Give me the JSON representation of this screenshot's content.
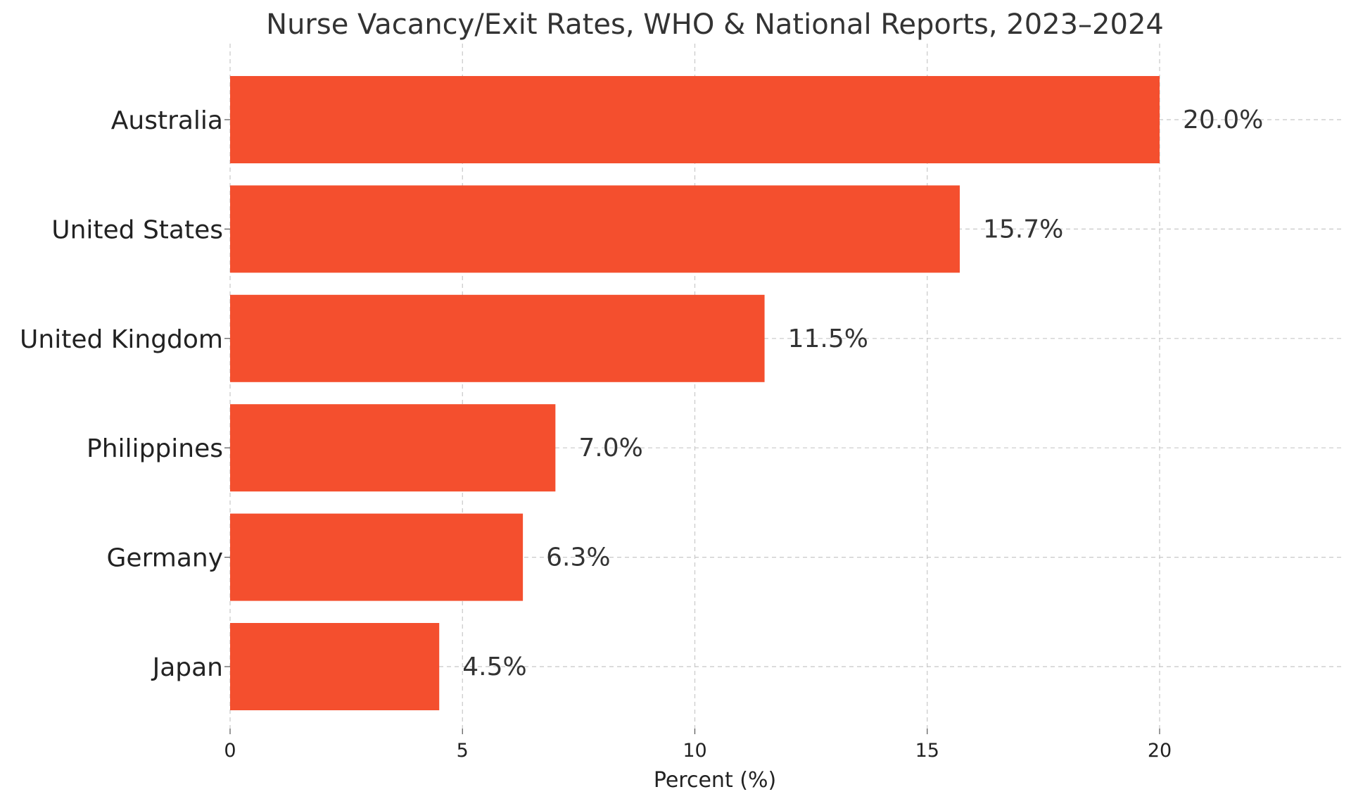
{
  "chart_data": {
    "type": "bar",
    "orientation": "horizontal",
    "title": "Nurse Vacancy/Exit Rates, WHO & National Reports, 2023–2024",
    "xlabel": "Percent (%)",
    "ylabel": "",
    "categories": [
      "Australia",
      "United States",
      "United Kingdom",
      "Philippines",
      "Germany",
      "Japan"
    ],
    "values": [
      20.0,
      15.7,
      11.5,
      7.0,
      6.3,
      4.5
    ],
    "value_labels": [
      "20.0%",
      "15.7%",
      "11.5%",
      "7.0%",
      "6.3%",
      "4.5%"
    ],
    "xlim": [
      0,
      24
    ],
    "xticks": [
      0,
      5,
      10,
      15,
      20
    ],
    "xtick_labels": [
      "0",
      "5",
      "10",
      "15",
      "20"
    ],
    "grid": true,
    "bar_color": "#f44f2e"
  }
}
